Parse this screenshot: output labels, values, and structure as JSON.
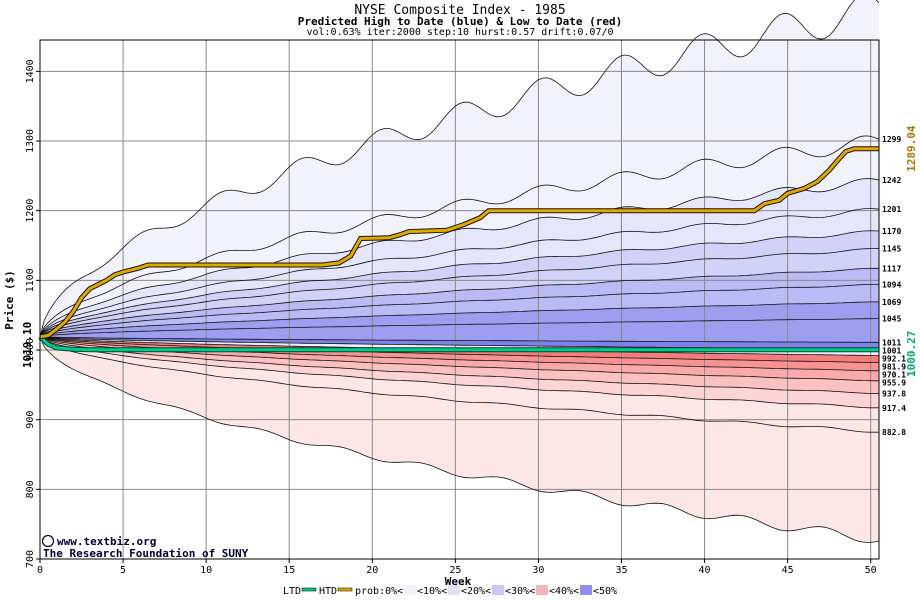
{
  "chart_data": {
    "type": "area",
    "title": "NYSE Composite Index - 1985",
    "subtitle": "Predicted High to Date (blue) &  Low to Date (red)",
    "params": "vol:0.63% iter:2000 step:10 hurst:0.57 drift:0.07/0",
    "xlabel": "Week",
    "ylabel": "Price ($)",
    "xlim": [
      0,
      50.5
    ],
    "ylim": [
      700,
      1445
    ],
    "x_ticks": [
      "0",
      "5",
      "10",
      "15",
      "20",
      "25",
      "30",
      "35",
      "40",
      "45",
      "50"
    ],
    "y_ticks": [
      "700",
      "800",
      "900",
      "1000",
      "1100",
      "1200",
      "1300",
      "1400"
    ],
    "start_price": 1019.1,
    "start_label": "1019.10",
    "htd_label": "1289.04",
    "htd_color": "#aa7700",
    "ltd_label": "1000.27",
    "ltd_color": "#00aa77",
    "high_band_colors": [
      "#f2f2fd",
      "#e5e5fb",
      "#d2d2f9",
      "#babaf5",
      "#9e9ef1",
      "#8080ec"
    ],
    "low_band_colors": [
      "#fde6e6",
      "#fcd4d4",
      "#fbc0c0",
      "#faaaaa",
      "#f89393",
      "#f57c7c"
    ],
    "high_quantiles": [
      {
        "label": "1299",
        "end": 1299,
        "k": 1.0
      },
      {
        "label": "1242",
        "end": 1242,
        "k": 0.7
      },
      {
        "label": "1201",
        "end": 1201,
        "k": 0.5
      },
      {
        "label": "1170",
        "end": 1170,
        "k": 0.4
      },
      {
        "label": "1145",
        "end": 1145,
        "k": 0.32
      },
      {
        "label": "1117",
        "end": 1117,
        "k": 0.26
      },
      {
        "label": "1094",
        "end": 1094,
        "k": 0.22
      },
      {
        "label": "1069",
        "end": 1069,
        "k": 0.18
      },
      {
        "label": "1045",
        "end": 1045,
        "k": 0.15
      },
      {
        "label": "1011",
        "end": 1011,
        "k": 0.1
      },
      {
        "label": "1001",
        "end": 1001,
        "k": 0.06
      }
    ],
    "low_quantiles": [
      {
        "label": "992.1",
        "end": 992.1,
        "k": 0.06
      },
      {
        "label": "981.9",
        "end": 981.9,
        "k": 0.09
      },
      {
        "label": "970.1",
        "end": 970.1,
        "k": 0.12
      },
      {
        "label": "955.9",
        "end": 955.9,
        "k": 0.15
      },
      {
        "label": "937.8",
        "end": 937.8,
        "k": 0.2
      },
      {
        "label": "917.4",
        "end": 917.4,
        "k": 0.26
      },
      {
        "label": "882.8",
        "end": 882.8,
        "k": 0.35
      }
    ],
    "outer_upper_end": 1490,
    "outer_lower_end": 728,
    "htd_series": [
      [
        0,
        1019
      ],
      [
        0.5,
        1021
      ],
      [
        1,
        1030
      ],
      [
        1.5,
        1040
      ],
      [
        2,
        1055
      ],
      [
        2.5,
        1075
      ],
      [
        3,
        1088
      ],
      [
        3.5,
        1094
      ],
      [
        4,
        1100
      ],
      [
        4.5,
        1108
      ],
      [
        5,
        1112
      ],
      [
        5.5,
        1115
      ],
      [
        6,
        1118
      ],
      [
        6.5,
        1122
      ],
      [
        10,
        1122
      ],
      [
        15,
        1122
      ],
      [
        17,
        1122
      ],
      [
        18,
        1125
      ],
      [
        18.7,
        1135
      ],
      [
        19.3,
        1160
      ],
      [
        21,
        1161
      ],
      [
        21.6,
        1165
      ],
      [
        22.2,
        1170
      ],
      [
        24.5,
        1172
      ],
      [
        25.5,
        1180
      ],
      [
        26.5,
        1190
      ],
      [
        27,
        1200
      ],
      [
        30,
        1200
      ],
      [
        35,
        1200
      ],
      [
        40,
        1200
      ],
      [
        43,
        1200
      ],
      [
        43.6,
        1210
      ],
      [
        44.5,
        1215
      ],
      [
        45,
        1225
      ],
      [
        46,
        1232
      ],
      [
        46.8,
        1242
      ],
      [
        47.5,
        1258
      ],
      [
        48,
        1272
      ],
      [
        48.5,
        1285
      ],
      [
        49,
        1289
      ],
      [
        50.5,
        1289
      ]
    ],
    "ltd_series": [
      [
        0,
        1019
      ],
      [
        0.5,
        1008
      ],
      [
        1,
        1003
      ],
      [
        2,
        1001
      ],
      [
        3,
        1000.5
      ],
      [
        5,
        1000.4
      ],
      [
        10,
        1000.3
      ],
      [
        50.5,
        1000.27
      ]
    ],
    "legend": [
      {
        "label": "LTD",
        "swatch": "#00cc88"
      },
      {
        "label": "HTD",
        "swatch": "#ddaa00"
      },
      {
        "label": "prob:0%<",
        "swatch": "#ffffff"
      },
      {
        "label": "<10%<",
        "swatch": "#f2f2fd"
      },
      {
        "label": "<20%<",
        "swatch": "#e0e0fa"
      },
      {
        "label": "<30%<",
        "swatch": "#c8c8f7"
      },
      {
        "label": "<40%<",
        "swatch": "#f4b4b4"
      },
      {
        "label": "<50%",
        "swatch": "#8f8ff0"
      }
    ]
  },
  "watermark": {
    "line1": "www.textbiz.org",
    "line2": "The Research Foundation of SUNY",
    "copyright_glyph": "©"
  }
}
